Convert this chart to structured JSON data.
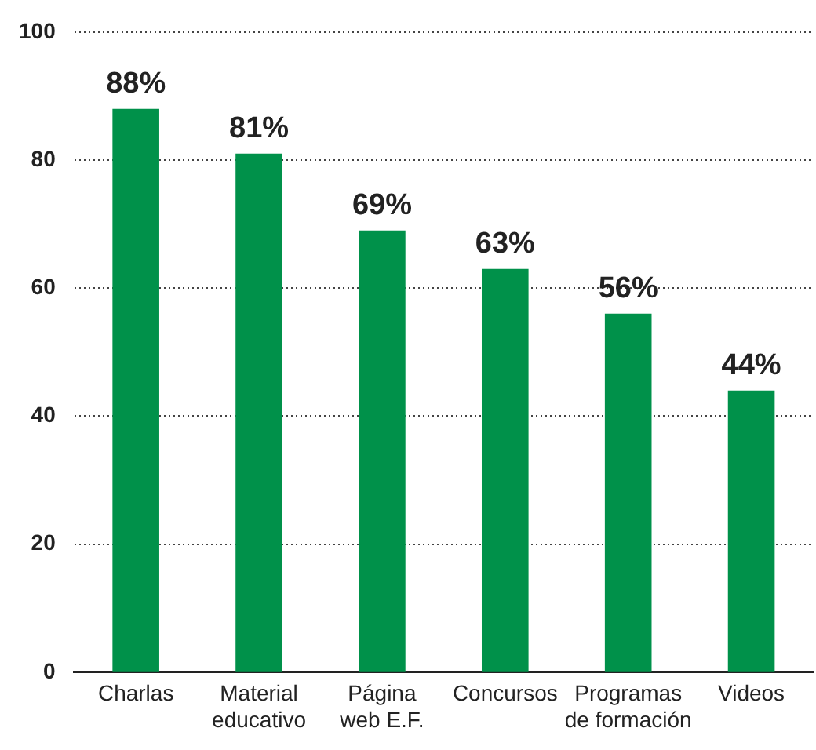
{
  "chart_data": {
    "type": "bar",
    "categories": [
      "Charlas",
      "Material\neducativo",
      "Página\nweb E.F.",
      "Concursos",
      "Programas\nde formación",
      "Videos"
    ],
    "values": [
      88,
      81,
      69,
      63,
      56,
      44
    ],
    "value_labels": [
      "88%",
      "81%",
      "69%",
      "63%",
      "56%",
      "44%"
    ],
    "color": "#00914a",
    "ylim": [
      0,
      100
    ],
    "yticks": [
      0,
      20,
      40,
      60,
      80,
      100
    ],
    "grid": "y",
    "legend": false
  }
}
